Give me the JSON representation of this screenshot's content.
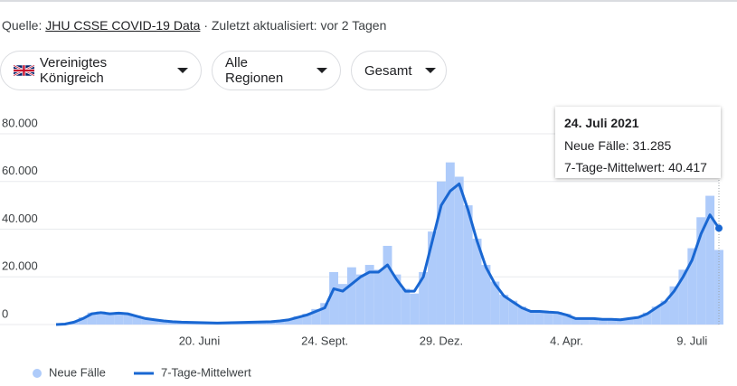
{
  "header": {
    "source_label": "Quelle:",
    "source_link": "JHU CSSE COVID-19 Data",
    "updated": "· Zuletzt aktualisiert: vor 2 Tagen"
  },
  "filters": [
    "Vereinigtes Königreich",
    "Alle Regionen",
    "Gesamt"
  ],
  "chart_data": {
    "type": "bar-line",
    "categories": [
      null,
      null,
      null,
      null,
      null,
      null,
      null,
      null,
      null,
      null,
      null,
      null,
      null,
      null,
      null,
      null,
      "20. Juni",
      null,
      null,
      null,
      null,
      null,
      null,
      null,
      null,
      null,
      null,
      null,
      null,
      null,
      "24. Sept.",
      null,
      null,
      null,
      null,
      null,
      null,
      null,
      null,
      null,
      null,
      null,
      null,
      "29. Dez.",
      null,
      null,
      null,
      null,
      null,
      null,
      null,
      null,
      null,
      null,
      null,
      null,
      null,
      "4. Apr.",
      null,
      null,
      null,
      null,
      null,
      null,
      null,
      null,
      null,
      null,
      null,
      null,
      null,
      "9. Juli",
      null,
      null,
      null
    ],
    "series": [
      {
        "name": "Neue Fälle",
        "color": "#aecbfa",
        "values": [
          0,
          300,
          1200,
          3000,
          5000,
          5500,
          4800,
          5200,
          4600,
          3700,
          2700,
          2100,
          1600,
          1300,
          1100,
          1000,
          900,
          800,
          700,
          800,
          900,
          1000,
          1100,
          1200,
          1300,
          1700,
          2300,
          3500,
          4500,
          6500,
          9000,
          22000,
          17000,
          24000,
          21000,
          25000,
          23000,
          33000,
          21000,
          15000,
          13000,
          22000,
          39000,
          60000,
          68000,
          62000,
          50000,
          36000,
          25000,
          18000,
          12500,
          10000,
          7500,
          6000,
          5800,
          5500,
          5300,
          4500,
          2800,
          2700,
          2600,
          2400,
          2300,
          2100,
          2700,
          3300,
          5000,
          7500,
          10000,
          16000,
          23000,
          32000,
          45000,
          54000,
          31285
        ]
      },
      {
        "name": "7-Tage-Mittelwert",
        "color": "#1967d2",
        "values": [
          0,
          200,
          1000,
          2500,
          4500,
          5000,
          4500,
          4800,
          4500,
          3500,
          2500,
          2000,
          1500,
          1200,
          1000,
          900,
          800,
          700,
          600,
          700,
          800,
          900,
          1000,
          1100,
          1200,
          1500,
          2000,
          3000,
          4000,
          5500,
          7000,
          15000,
          14000,
          17000,
          20000,
          22000,
          22000,
          25000,
          19000,
          14000,
          14000,
          20000,
          35000,
          50000,
          56000,
          59000,
          48000,
          35000,
          24000,
          17000,
          12000,
          9500,
          7000,
          5500,
          5500,
          5200,
          5000,
          4000,
          2500,
          2500,
          2500,
          2200,
          2200,
          2000,
          2500,
          3000,
          4500,
          7000,
          9500,
          14000,
          20000,
          27000,
          38000,
          46000,
          40417
        ]
      }
    ],
    "ylim": [
      0,
      80000
    ],
    "yticks": [
      0,
      {
        "value": 20000,
        "label": "20.000"
      },
      {
        "value": 40000,
        "label": "40.000"
      },
      {
        "value": 60000,
        "label": "60.000"
      },
      {
        "value": 80000,
        "label": "80.000"
      }
    ],
    "grid": true,
    "tooltip": {
      "date": "24. Juli 2021",
      "lines": [
        "Neue Fälle: 31.285",
        "7-Tage-Mittelwert: 40.417"
      ]
    }
  }
}
